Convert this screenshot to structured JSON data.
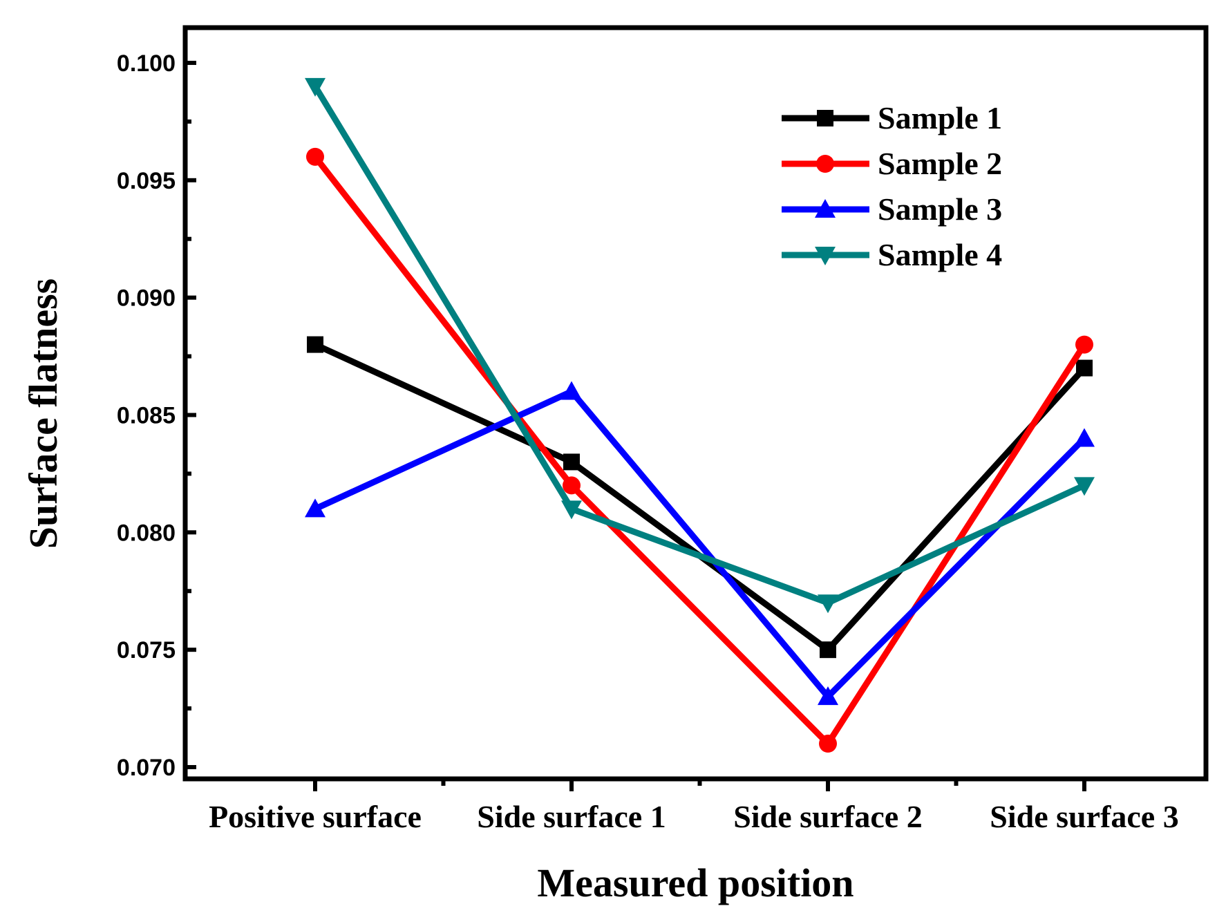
{
  "chart_data": {
    "type": "line",
    "title": "",
    "xlabel": "Measured position",
    "ylabel": "Surface flatness",
    "categories": [
      "Positive surface",
      "Side surface 1",
      "Side surface 2",
      "Side surface 3"
    ],
    "ylim": [
      0.0695,
      0.1015
    ],
    "yticks": [
      "0.070",
      "0.075",
      "0.080",
      "0.085",
      "0.090",
      "0.095",
      "0.100"
    ],
    "legend_position": "top-right",
    "series": [
      {
        "name": "Sample 1",
        "color": "#000000",
        "marker": "square",
        "values": [
          0.088,
          0.083,
          0.075,
          0.087
        ]
      },
      {
        "name": "Sample 2",
        "color": "#ff0000",
        "marker": "circle",
        "values": [
          0.096,
          0.082,
          0.071,
          0.088
        ]
      },
      {
        "name": "Sample 3",
        "color": "#0000ff",
        "marker": "triangle-up",
        "values": [
          0.081,
          0.086,
          0.073,
          0.084
        ]
      },
      {
        "name": "Sample 4",
        "color": "#008080",
        "marker": "triangle-down",
        "values": [
          0.099,
          0.081,
          0.077,
          0.082
        ]
      }
    ]
  }
}
